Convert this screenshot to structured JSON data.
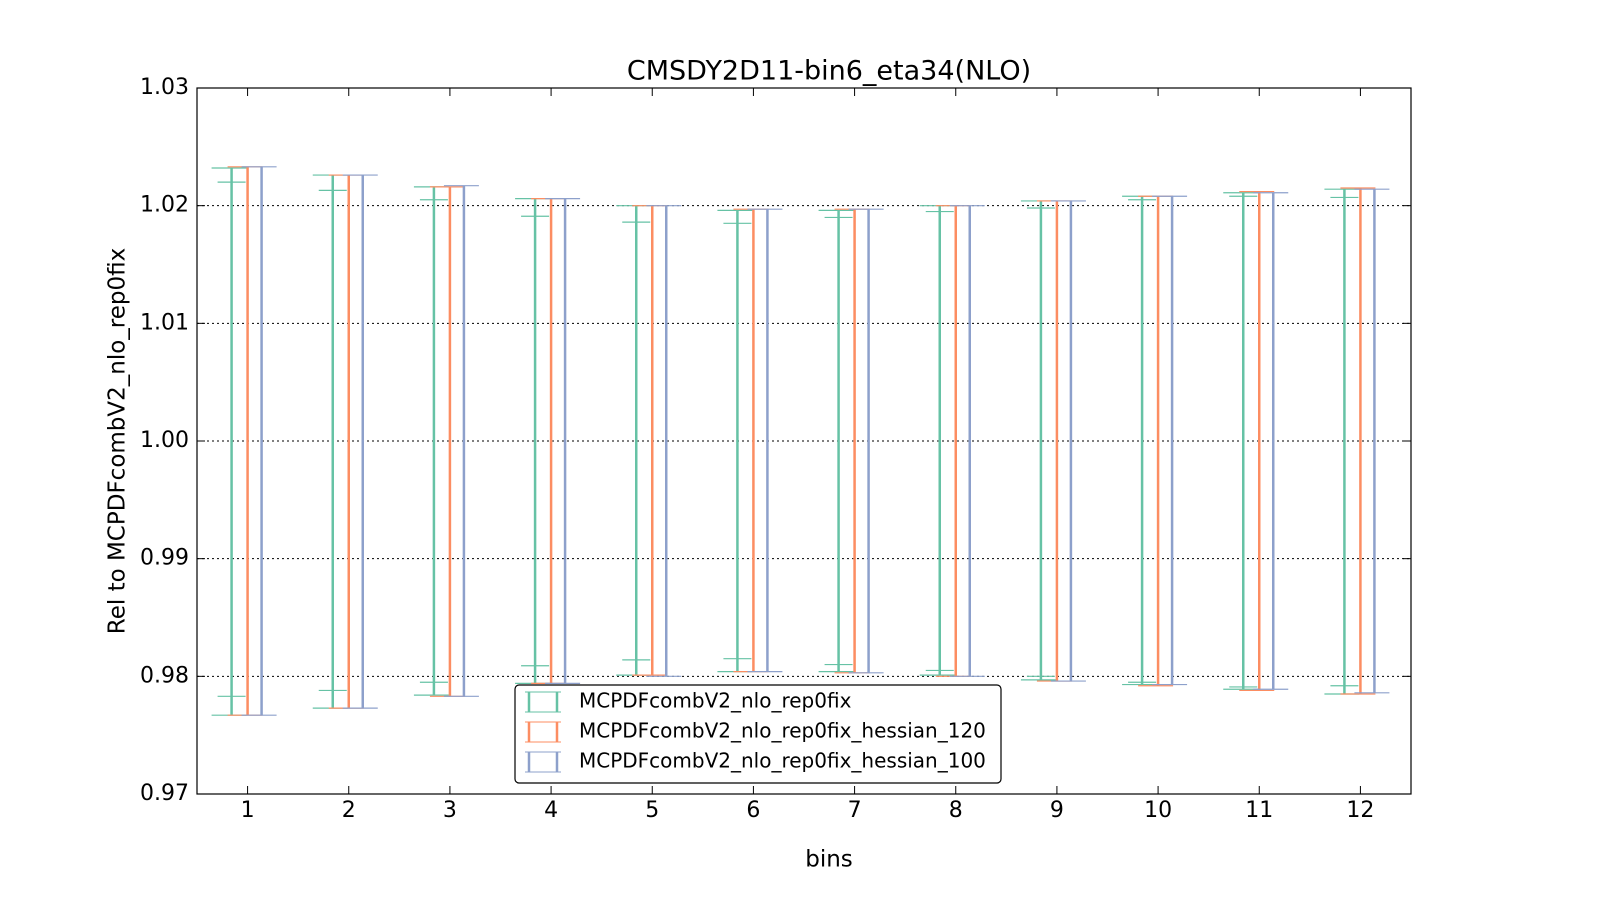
{
  "chart_data": {
    "type": "errorband",
    "title": "CMSDY2D11-bin6_eta34(NLO)",
    "xlabel": "bins",
    "ylabel": "Rel to MCPDFcombV2_nlo_rep0fix",
    "x": [
      1,
      2,
      3,
      4,
      5,
      6,
      7,
      8,
      9,
      10,
      11,
      12
    ],
    "xlim": [
      0.5,
      12.5
    ],
    "xticks": [
      1,
      2,
      3,
      4,
      5,
      6,
      7,
      8,
      9,
      10,
      11,
      12
    ],
    "ylim": [
      0.97,
      1.03
    ],
    "yticks": [
      0.97,
      0.98,
      0.99,
      {
        "value": 1,
        "label": "1.00"
      },
      1.01,
      1.02,
      1.03
    ],
    "grid": true,
    "legend": "lower center",
    "series": [
      {
        "name": "MCPDFcombV2_nlo_rep0fix",
        "color": "#66c2a5",
        "high": [
          1.0232,
          1.0226,
          1.0216,
          1.0206,
          1.02,
          1.0196,
          1.0196,
          1.02,
          1.0204,
          1.0208,
          1.0211,
          1.0214
        ],
        "low": [
          0.9767,
          0.9773,
          0.9784,
          0.9794,
          0.9801,
          0.9804,
          0.9804,
          0.9801,
          0.9797,
          0.9793,
          0.9789,
          0.9785
        ],
        "inner_high": [
          1.022,
          1.0213,
          1.0205,
          1.0191,
          1.0186,
          1.0185,
          1.019,
          1.0195,
          1.0198,
          1.0205,
          1.0208,
          1.0207
        ],
        "inner_low": [
          0.9783,
          0.9788,
          0.9795,
          0.9809,
          0.9814,
          0.9815,
          0.981,
          0.9805,
          0.98,
          0.9795,
          0.9791,
          0.9792
        ]
      },
      {
        "name": "MCPDFcombV2_nlo_rep0fix_hessian_120",
        "color": "#fc8d62",
        "high": [
          1.0233,
          1.0226,
          1.0216,
          1.0206,
          1.02,
          1.0197,
          1.0197,
          1.02,
          1.0204,
          1.0208,
          1.0212,
          1.0215
        ],
        "low": [
          0.9767,
          0.9773,
          0.9783,
          0.9794,
          0.9801,
          0.9804,
          0.9803,
          0.98,
          0.9796,
          0.9792,
          0.9788,
          0.9785
        ]
      },
      {
        "name": "MCPDFcombV2_nlo_rep0fix_hessian_100",
        "color": "#8da0cb",
        "high": [
          1.0233,
          1.0226,
          1.0217,
          1.0206,
          1.02,
          1.0197,
          1.0197,
          1.02,
          1.0204,
          1.0208,
          1.0211,
          1.0214
        ],
        "low": [
          0.9767,
          0.9773,
          0.9783,
          0.9794,
          0.98,
          0.9804,
          0.9803,
          0.98,
          0.9796,
          0.9793,
          0.9789,
          0.9786
        ]
      }
    ]
  }
}
